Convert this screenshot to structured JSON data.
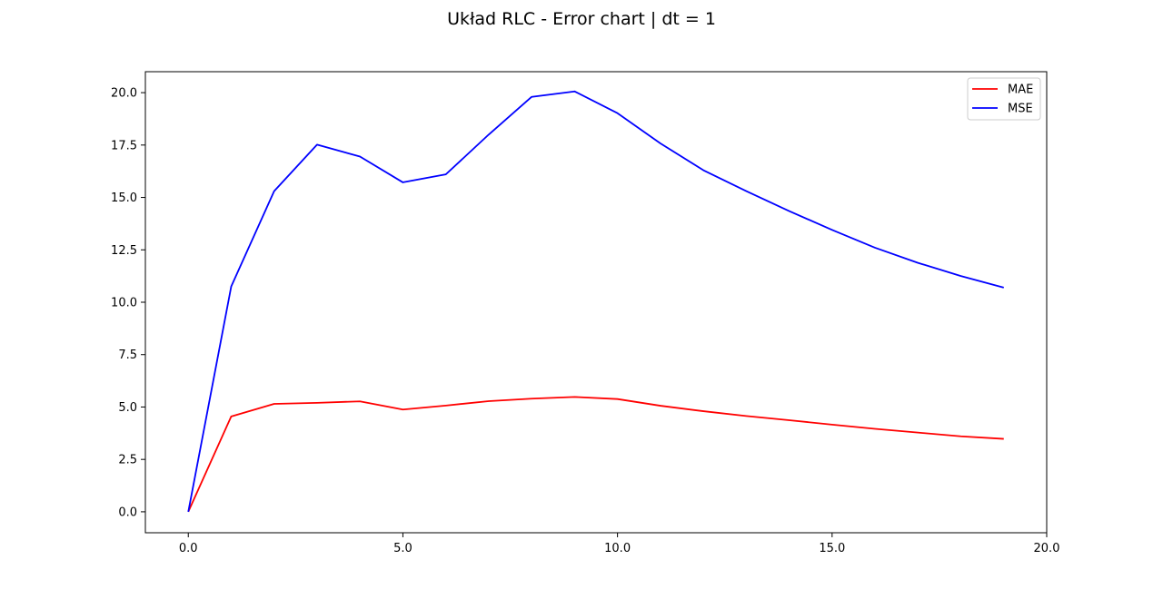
{
  "chart_data": {
    "type": "line",
    "title": "Układ RLC - Error chart | dt = 1",
    "xlabel": "",
    "ylabel": "",
    "xlim": [
      -1,
      20
    ],
    "ylim": [
      -1.0,
      21.0
    ],
    "x_ticks": [
      0.0,
      5.0,
      10.0,
      15.0,
      20.0
    ],
    "x_tick_labels": [
      "0.0",
      "5.0",
      "10.0",
      "15.0",
      "20.0"
    ],
    "y_ticks": [
      0.0,
      2.5,
      5.0,
      7.5,
      10.0,
      12.5,
      15.0,
      17.5,
      20.0
    ],
    "y_tick_labels": [
      "0.0",
      "2.5",
      "5.0",
      "7.5",
      "10.0",
      "12.5",
      "15.0",
      "17.5",
      "20.0"
    ],
    "grid": false,
    "legend_position": "top-right",
    "x": [
      0,
      1,
      2,
      3,
      4,
      5,
      6,
      7,
      8,
      9,
      10,
      11,
      12,
      13,
      14,
      15,
      16,
      17,
      18,
      19
    ],
    "series": [
      {
        "name": "MAE",
        "color": "#ff0000",
        "values": [
          0.0,
          4.55,
          5.15,
          5.2,
          5.27,
          4.88,
          5.07,
          5.28,
          5.4,
          5.48,
          5.38,
          5.06,
          4.8,
          4.57,
          4.37,
          4.16,
          3.96,
          3.78,
          3.6,
          3.48
        ]
      },
      {
        "name": "MSE",
        "color": "#0000ff",
        "values": [
          0.0,
          10.75,
          15.3,
          17.52,
          16.95,
          15.72,
          16.1,
          18.0,
          19.8,
          20.06,
          19.02,
          17.58,
          16.3,
          15.3,
          14.35,
          13.45,
          12.6,
          11.88,
          11.25,
          10.7
        ]
      }
    ]
  }
}
